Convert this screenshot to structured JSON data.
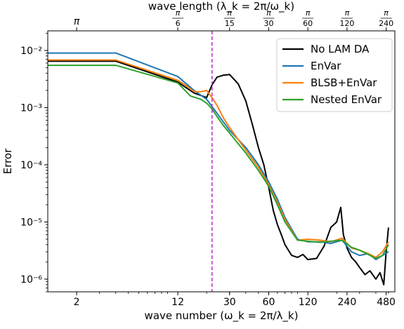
{
  "chart_data": {
    "type": "line",
    "xlabel": "wave number (ω_k = 2π/λ_k)",
    "ylabel": "Error",
    "top_xlabel": "wave length (λ_k = 2π/ω_k)",
    "x_scale": "log",
    "y_scale": "log",
    "xlim": [
      1.2,
      560
    ],
    "ylim": [
      6e-07,
      0.022
    ],
    "x_ticks": [
      2,
      12,
      30,
      60,
      120,
      240,
      480
    ],
    "x_tick_labels": [
      "2",
      "12",
      "30",
      "60",
      "120",
      "240",
      "480"
    ],
    "y_ticks": [
      1e-06,
      1e-05,
      0.0001,
      0.001,
      0.01
    ],
    "y_tick_labels": [
      "10⁻⁶",
      "10⁻⁵",
      "10⁻⁴",
      "10⁻³",
      "10⁻²"
    ],
    "top_ticks": [
      2,
      12,
      30,
      60,
      120,
      240,
      480
    ],
    "top_tick_labels": [
      "π",
      "π/6",
      "π/15",
      "π/30",
      "π/60",
      "π/120",
      "π/240"
    ],
    "vline": {
      "x": 22,
      "color": "#b92ec9",
      "style": "dashed"
    },
    "legend_position": "top-right",
    "grid": false,
    "series": [
      {
        "name": "No LAM DA",
        "color": "#000000",
        "x": [
          1.2,
          4,
          12,
          16,
          20,
          22,
          24,
          27,
          30,
          35,
          40,
          45,
          50,
          55,
          60,
          65,
          70,
          75,
          80,
          90,
          100,
          110,
          120,
          140,
          160,
          180,
          200,
          215,
          225,
          240,
          260,
          280,
          300,
          330,
          360,
          400,
          430,
          460,
          480,
          500
        ],
        "y": [
          0.0065,
          0.0065,
          0.0028,
          0.0018,
          0.0015,
          0.0025,
          0.0034,
          0.0037,
          0.0038,
          0.0026,
          0.0013,
          0.0005,
          0.0002,
          0.0001,
          4e-05,
          1.6e-05,
          9e-06,
          6e-06,
          4e-06,
          2.6e-06,
          2.4e-06,
          2.7e-06,
          2.2e-06,
          2.3e-06,
          3.8e-06,
          8e-06,
          1e-05,
          1.8e-05,
          6e-06,
          3.5e-06,
          2.4e-06,
          2e-06,
          1.6e-06,
          1.2e-06,
          1.4e-06,
          1e-06,
          1.3e-06,
          8e-07,
          3e-06,
          8e-06
        ]
      },
      {
        "name": "EnVar",
        "color": "#1f77b4",
        "x": [
          1.2,
          4,
          12,
          16,
          20,
          24,
          30,
          40,
          50,
          60,
          70,
          80,
          100,
          120,
          150,
          180,
          220,
          260,
          300,
          350,
          400,
          450,
          500
        ],
        "y": [
          0.009,
          0.009,
          0.0035,
          0.002,
          0.0014,
          0.0008,
          0.0004,
          0.0002,
          0.0001,
          5e-05,
          2.5e-05,
          1.2e-05,
          5e-06,
          4.5e-06,
          4.5e-06,
          4.2e-06,
          4.8e-06,
          3e-06,
          2.6e-06,
          2.8e-06,
          2.2e-06,
          2.6e-06,
          3e-06
        ]
      },
      {
        "name": "BLSB+EnVar",
        "color": "#ff7f0e",
        "x": [
          1.2,
          4,
          12,
          14,
          16,
          18,
          20,
          22,
          24,
          27,
          30,
          40,
          50,
          60,
          70,
          80,
          100,
          120,
          150,
          180,
          220,
          260,
          300,
          350,
          400,
          450,
          500
        ],
        "y": [
          0.0068,
          0.0068,
          0.003,
          0.0024,
          0.0019,
          0.0019,
          0.002,
          0.0015,
          0.0011,
          0.00065,
          0.00045,
          0.00018,
          9e-05,
          4.5e-05,
          2.2e-05,
          1.1e-05,
          4.8e-06,
          5e-06,
          4.8e-06,
          4.5e-06,
          5.2e-06,
          3.5e-06,
          3.2e-06,
          2.8e-06,
          2.4e-06,
          3e-06,
          4.5e-06
        ]
      },
      {
        "name": "Nested EnVar",
        "color": "#2ca02c",
        "x": [
          1.2,
          4,
          12,
          15,
          18,
          20,
          22,
          24,
          27,
          30,
          40,
          50,
          60,
          70,
          80,
          100,
          120,
          150,
          180,
          220,
          260,
          300,
          350,
          400,
          450,
          500
        ],
        "y": [
          0.0055,
          0.0055,
          0.0027,
          0.0016,
          0.0014,
          0.0012,
          0.00095,
          0.0007,
          0.00048,
          0.00036,
          0.00016,
          8e-05,
          4.2e-05,
          2e-05,
          1e-05,
          4.8e-06,
          4.6e-06,
          4.4e-06,
          4.6e-06,
          4.8e-06,
          3.6e-06,
          3.2e-06,
          2.7e-06,
          2.3e-06,
          2.6e-06,
          4e-06
        ]
      }
    ]
  }
}
